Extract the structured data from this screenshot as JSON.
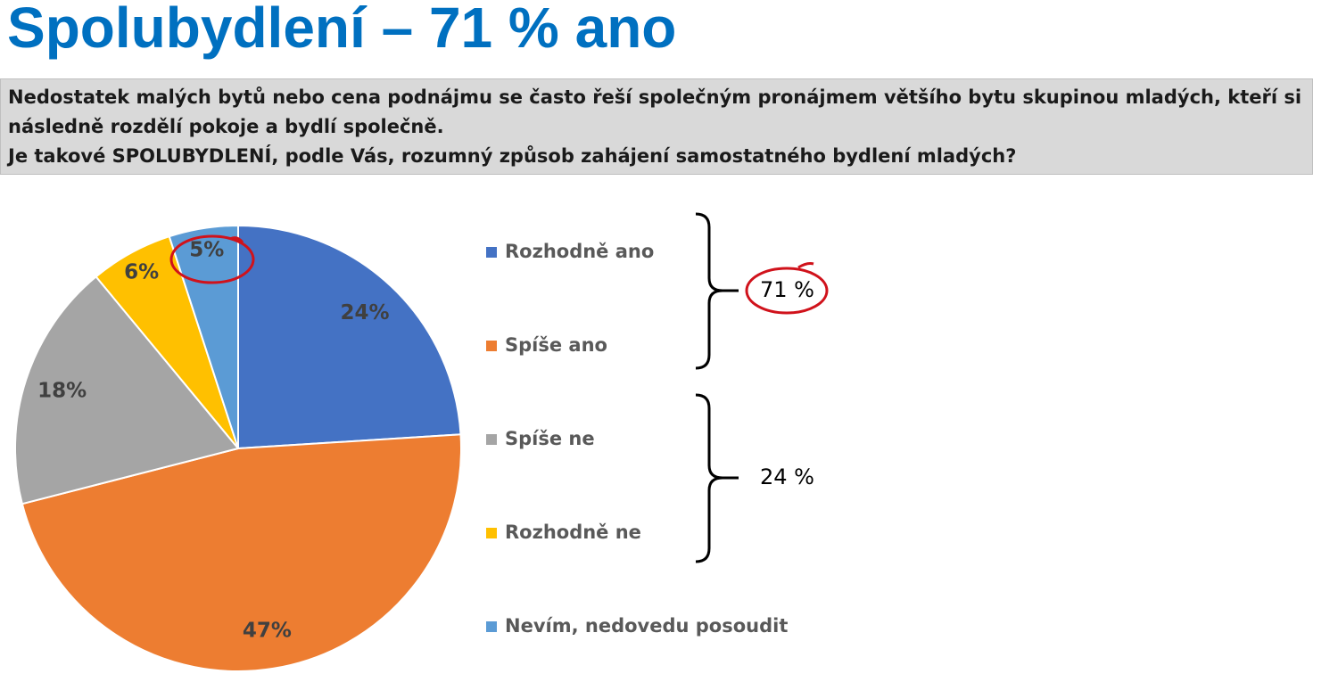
{
  "chart_data": {
    "type": "pie",
    "title": "Spolubydlení – 71 % ano",
    "question": [
      "Nedostatek malých bytů nebo cena podnájmu se často řeší společným pronájmem většího bytu skupinou mladých, kteří si následně rozdělí pokoje a bydlí společně.",
      "Je takové SPOLUBYDLENÍ, podle Vás, rozumný způsob zahájení samostatného bydlení mladých?"
    ],
    "categories": [
      "Rozhodně ano",
      "Spíše ano",
      "Spíše ne",
      "Rozhodně ne",
      "Nevím, nedovedu posoudit"
    ],
    "values": [
      24,
      47,
      18,
      6,
      5
    ],
    "value_labels": [
      "24%",
      "47%",
      "18%",
      "6%",
      "5%"
    ],
    "colors": [
      "#4472c4",
      "#ed7d31",
      "#a5a5a5",
      "#ffc000",
      "#5b9bd5"
    ],
    "annotations": [
      "71 %",
      "24 %"
    ]
  }
}
